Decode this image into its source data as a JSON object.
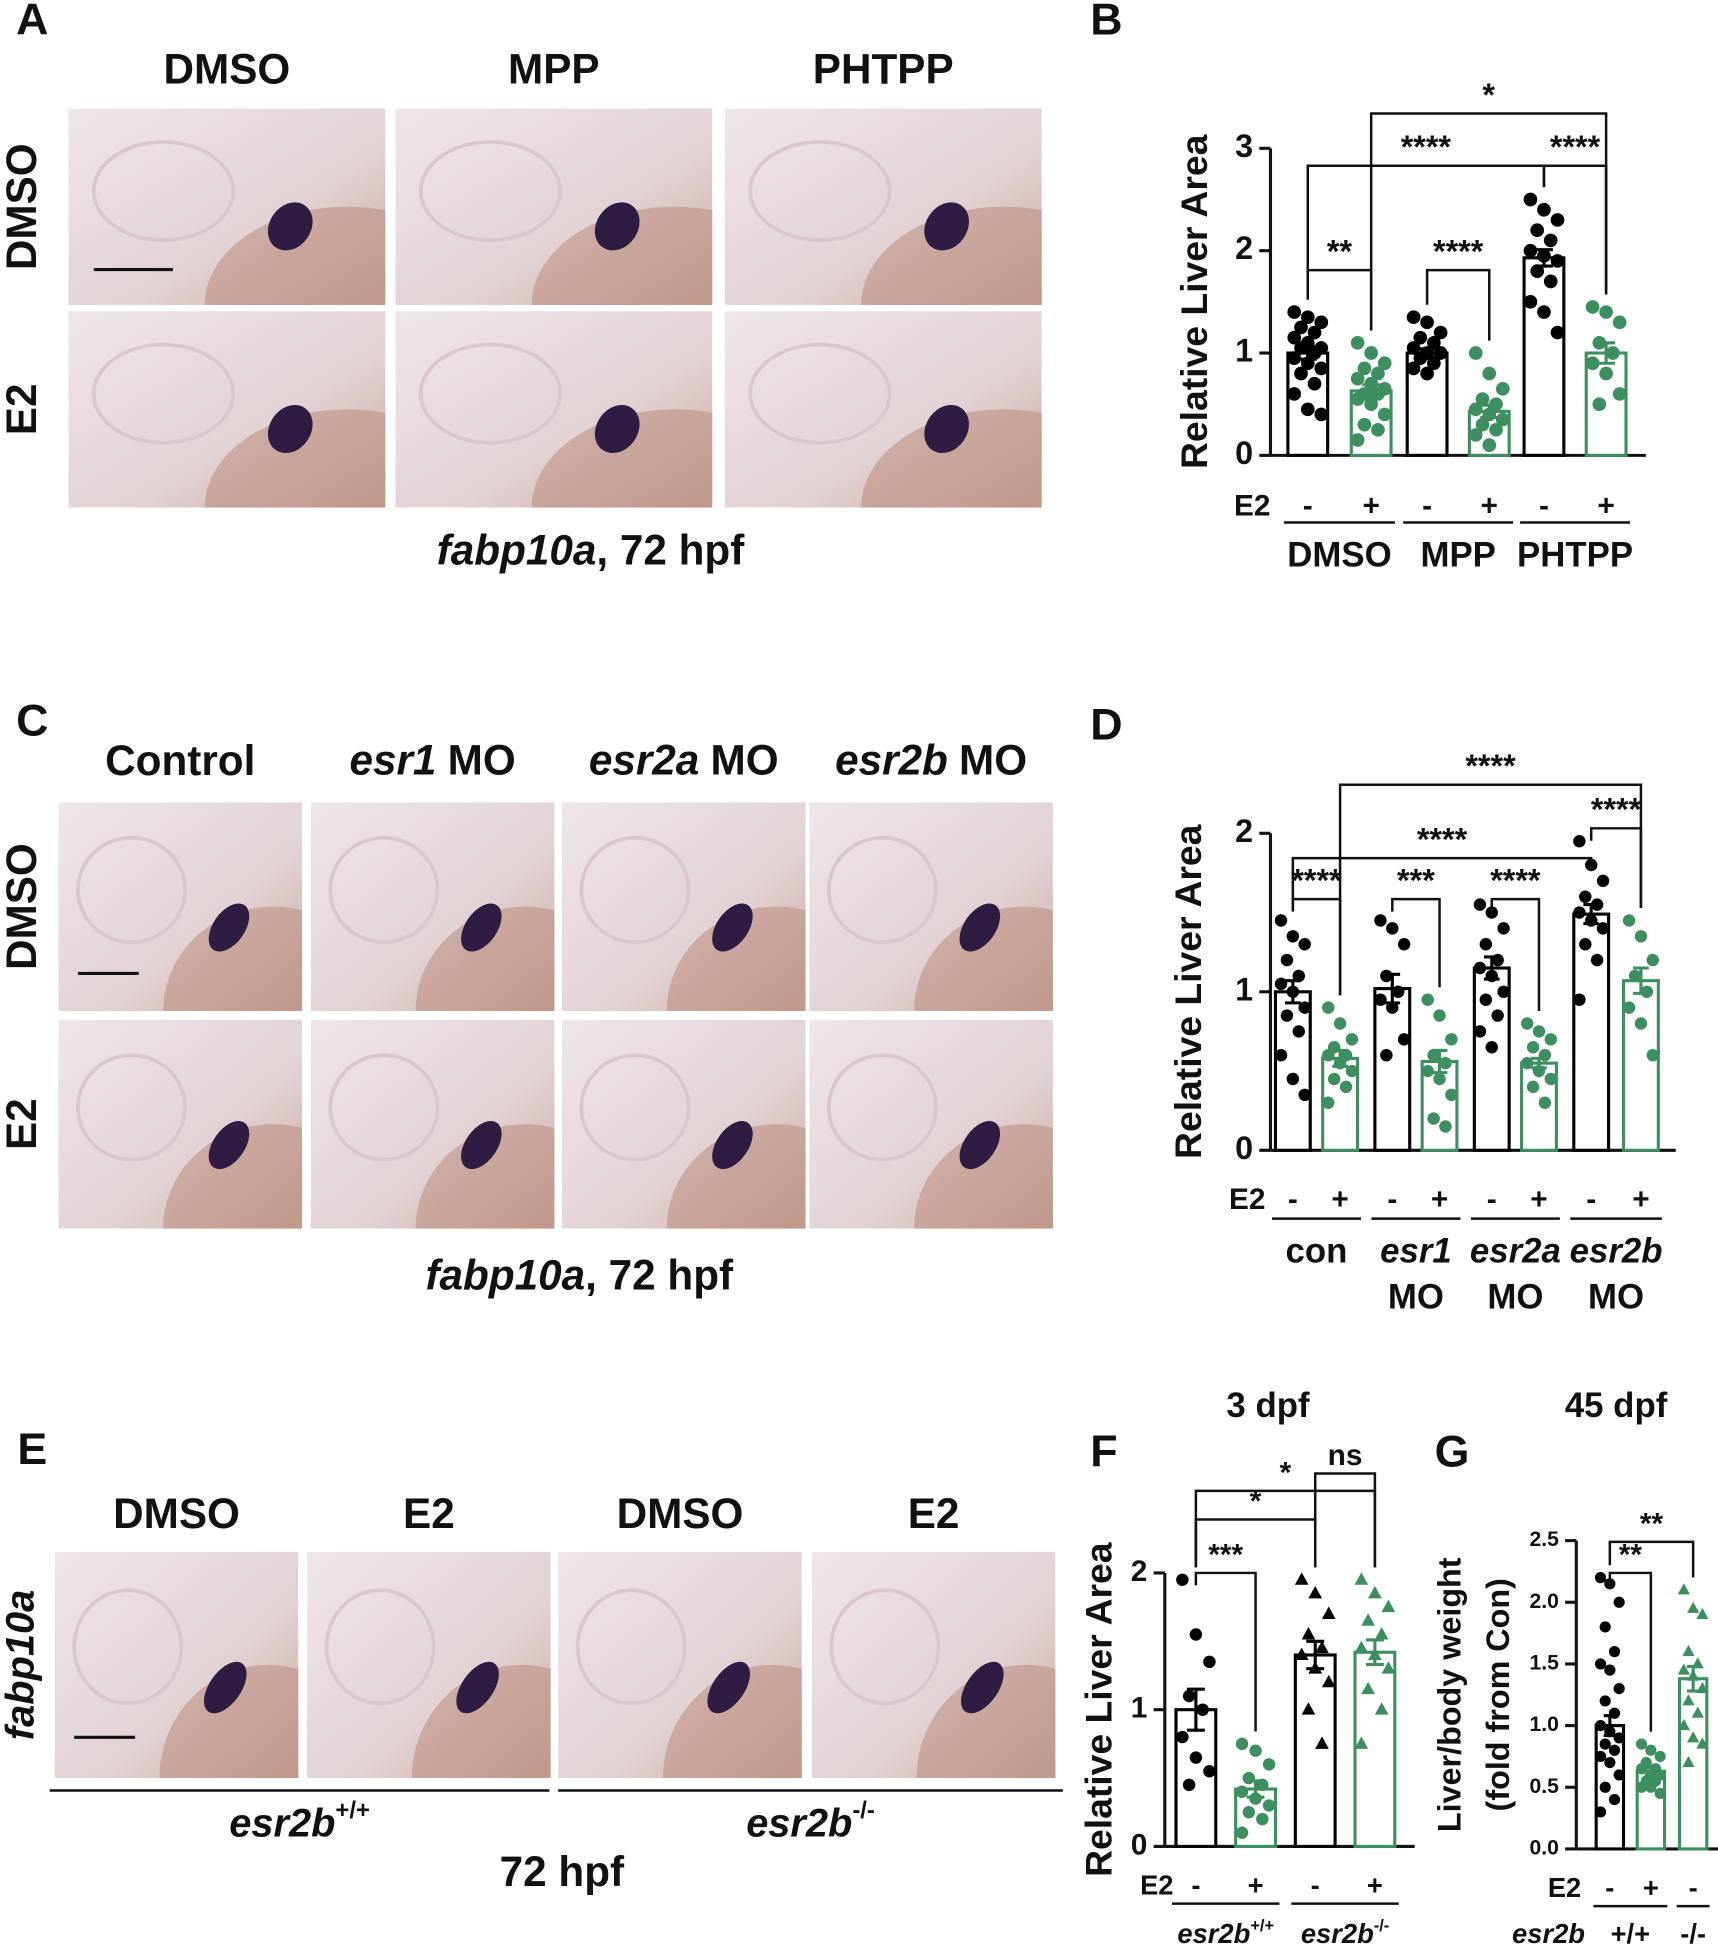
{
  "panels": {
    "A": {
      "letter": "A",
      "columns": [
        "DMSO",
        "MPP",
        "PHTPP"
      ],
      "rows": [
        "DMSO",
        "E2"
      ],
      "caption": {
        "gene": "fabp10a",
        "suffix": ", 72 hpf"
      }
    },
    "C": {
      "letter": "C",
      "columns": [
        "Control",
        {
          "gene": "esr1",
          "suffix": "MO"
        },
        {
          "gene": "esr2a",
          "suffix": "MO"
        },
        {
          "gene": "esr2b",
          "suffix": "MO"
        }
      ],
      "rows": [
        "DMSO",
        "E2"
      ],
      "caption": {
        "gene": "fabp10a",
        "suffix": ", 72 hpf"
      }
    },
    "E": {
      "letter": "E",
      "columns": [
        "DMSO",
        "E2",
        "DMSO",
        "E2"
      ],
      "side_label": {
        "gene": "fabp10a"
      },
      "genotypes": [
        {
          "gene": "esr2b",
          "sup": "+/+"
        },
        {
          "gene": "esr2b",
          "sup": "-/-"
        }
      ],
      "caption": "72 hpf"
    }
  },
  "chart_data": [
    {
      "type": "bar",
      "letter": "B",
      "ylabel": "Relative Liver Area",
      "ylim": [
        0,
        3
      ],
      "yticks": [
        0,
        1,
        2,
        3
      ],
      "row_label": "E2",
      "bars": [
        {
          "treatment": "-",
          "color": "#000000",
          "marker": "circle",
          "value": 1.0,
          "error": 0.06,
          "points": [
            1.4,
            1.35,
            1.3,
            1.25,
            1.2,
            1.15,
            1.1,
            1.05,
            1.05,
            1.0,
            0.95,
            0.9,
            0.85,
            0.8,
            0.7,
            0.6,
            0.45,
            0.4
          ]
        },
        {
          "treatment": "+",
          "color": "#3d8f5f",
          "marker": "circle",
          "value": 0.63,
          "error": 0.06,
          "points": [
            1.1,
            1.0,
            0.9,
            0.85,
            0.8,
            0.75,
            0.7,
            0.65,
            0.6,
            0.6,
            0.55,
            0.5,
            0.4,
            0.3,
            0.25,
            0.15
          ]
        },
        {
          "treatment": "-",
          "color": "#000000",
          "marker": "circle",
          "value": 1.0,
          "error": 0.04,
          "points": [
            1.35,
            1.3,
            1.2,
            1.15,
            1.1,
            1.05,
            1.0,
            1.0,
            0.95,
            0.9,
            0.85,
            0.8
          ]
        },
        {
          "treatment": "+",
          "color": "#3d8f5f",
          "marker": "circle",
          "value": 0.43,
          "error": 0.06,
          "points": [
            1.0,
            0.8,
            0.65,
            0.55,
            0.5,
            0.45,
            0.4,
            0.35,
            0.3,
            0.25,
            0.2,
            0.1
          ]
        },
        {
          "treatment": "-",
          "color": "#000000",
          "marker": "circle",
          "value": 1.93,
          "error": 0.08,
          "points": [
            2.5,
            2.4,
            2.3,
            2.2,
            2.1,
            2.0,
            1.95,
            1.9,
            1.8,
            1.7,
            1.5,
            1.4,
            1.2
          ]
        },
        {
          "treatment": "+",
          "color": "#3d8f5f",
          "marker": "circle",
          "value": 1.0,
          "error": 0.1,
          "points": [
            1.45,
            1.4,
            1.3,
            1.1,
            1.0,
            0.9,
            0.8,
            0.6,
            0.5
          ]
        }
      ],
      "groups": [
        {
          "label": "DMSO",
          "bars": [
            0,
            1
          ]
        },
        {
          "label": "MPP",
          "bars": [
            2,
            3
          ]
        },
        {
          "label": "PHTPP",
          "bars": [
            4,
            5
          ]
        }
      ],
      "significance": [
        {
          "bars": [
            0,
            1
          ],
          "label": "**"
        },
        {
          "bars": [
            2,
            3
          ],
          "label": "****"
        },
        {
          "bars": [
            4,
            5
          ],
          "label": "****"
        },
        {
          "bars": [
            0,
            4
          ],
          "label": "****"
        },
        {
          "bars": [
            1,
            5
          ],
          "label": "*"
        }
      ]
    },
    {
      "type": "bar",
      "letter": "D",
      "ylabel": "Relative Liver Area",
      "ylim": [
        0,
        2
      ],
      "yticks": [
        0,
        1,
        2
      ],
      "row_label": "E2",
      "bars": [
        {
          "treatment": "-",
          "color": "#000000",
          "marker": "circle",
          "value": 1.0,
          "error": 0.07,
          "points": [
            1.45,
            1.35,
            1.3,
            1.2,
            1.1,
            1.05,
            1.0,
            0.9,
            0.85,
            0.75,
            0.6,
            0.45,
            0.35
          ]
        },
        {
          "treatment": "+",
          "color": "#3d8f5f",
          "marker": "circle",
          "value": 0.58,
          "error": 0.05,
          "points": [
            0.9,
            0.8,
            0.7,
            0.65,
            0.6,
            0.6,
            0.55,
            0.5,
            0.45,
            0.4,
            0.3
          ]
        },
        {
          "treatment": "-",
          "color": "#000000",
          "marker": "circle",
          "value": 1.02,
          "error": 0.09,
          "points": [
            1.45,
            1.4,
            1.3,
            1.1,
            1.0,
            0.95,
            0.9,
            0.7,
            0.6
          ]
        },
        {
          "treatment": "+",
          "color": "#3d8f5f",
          "marker": "circle",
          "value": 0.56,
          "error": 0.07,
          "points": [
            0.95,
            0.85,
            0.7,
            0.6,
            0.55,
            0.5,
            0.45,
            0.35,
            0.2,
            0.15
          ]
        },
        {
          "treatment": "-",
          "color": "#000000",
          "marker": "circle",
          "value": 1.15,
          "error": 0.07,
          "points": [
            1.55,
            1.5,
            1.4,
            1.3,
            1.2,
            1.15,
            1.1,
            1.0,
            0.95,
            0.85,
            0.75,
            0.65
          ]
        },
        {
          "treatment": "+",
          "color": "#3d8f5f",
          "marker": "circle",
          "value": 0.55,
          "error": 0.03,
          "points": [
            0.8,
            0.75,
            0.7,
            0.65,
            0.6,
            0.55,
            0.5,
            0.45,
            0.4,
            0.3
          ]
        },
        {
          "treatment": "-",
          "color": "#000000",
          "marker": "circle",
          "value": 1.49,
          "error": 0.06,
          "points": [
            1.95,
            1.8,
            1.7,
            1.6,
            1.55,
            1.5,
            1.45,
            1.4,
            1.3,
            1.2,
            0.95
          ]
        },
        {
          "treatment": "+",
          "color": "#3d8f5f",
          "marker": "circle",
          "value": 1.07,
          "error": 0.08,
          "points": [
            1.45,
            1.35,
            1.2,
            1.1,
            1.0,
            0.9,
            0.8,
            0.6
          ]
        }
      ],
      "groups": [
        {
          "label": "con",
          "bars": [
            0,
            1
          ]
        },
        {
          "label": {
            "gene": "esr1",
            "suffix": "MO"
          },
          "bars": [
            2,
            3
          ]
        },
        {
          "label": {
            "gene": "esr2a",
            "suffix": "MO"
          },
          "bars": [
            4,
            5
          ]
        },
        {
          "label": {
            "gene": "esr2b",
            "suffix": "MO"
          },
          "bars": [
            6,
            7
          ]
        }
      ],
      "significance": [
        {
          "bars": [
            0,
            1
          ],
          "label": "****"
        },
        {
          "bars": [
            2,
            3
          ],
          "label": "***"
        },
        {
          "bars": [
            4,
            5
          ],
          "label": "****"
        },
        {
          "bars": [
            6,
            7
          ],
          "label": "****"
        },
        {
          "bars": [
            0,
            6
          ],
          "label": "****"
        },
        {
          "bars": [
            1,
            7
          ],
          "label": "****"
        }
      ]
    },
    {
      "type": "bar",
      "letter": "F",
      "title": "3 dpf",
      "ylabel": "Relative Liver Area",
      "ylim": [
        0,
        2
      ],
      "yticks": [
        0,
        1,
        2
      ],
      "row_label": "E2",
      "bars": [
        {
          "treatment": "-",
          "color": "#000000",
          "marker": "circle",
          "value": 1.0,
          "error": 0.15,
          "points": [
            1.95,
            1.55,
            1.35,
            1.1,
            1.0,
            0.8,
            0.65,
            0.55,
            0.45
          ]
        },
        {
          "treatment": "+",
          "color": "#3d8f5f",
          "marker": "circle",
          "value": 0.42,
          "error": 0.06,
          "points": [
            0.75,
            0.7,
            0.6,
            0.5,
            0.45,
            0.4,
            0.35,
            0.3,
            0.25,
            0.2,
            0.1
          ]
        },
        {
          "treatment": "-",
          "color": "#000000",
          "marker": "triangle",
          "value": 1.4,
          "error": 0.1,
          "points": [
            1.95,
            1.85,
            1.7,
            1.55,
            1.45,
            1.4,
            1.3,
            1.2,
            1.0,
            0.75
          ]
        },
        {
          "treatment": "+",
          "color": "#3d8f5f",
          "marker": "triangle",
          "value": 1.42,
          "error": 0.09,
          "points": [
            1.95,
            1.85,
            1.75,
            1.65,
            1.55,
            1.45,
            1.4,
            1.3,
            1.15,
            1.0,
            0.75
          ]
        }
      ],
      "groups": [
        {
          "label": {
            "gene": "esr2b",
            "sup": "+/+"
          },
          "bars": [
            0,
            1
          ]
        },
        {
          "label": {
            "gene": "esr2b",
            "sup": "-/-"
          },
          "bars": [
            2,
            3
          ]
        }
      ],
      "significance": [
        {
          "bars": [
            0,
            1
          ],
          "label": "***"
        },
        {
          "bars": [
            0,
            2
          ],
          "label": "*"
        },
        {
          "bars": [
            0,
            3
          ],
          "label": "*"
        },
        {
          "bars": [
            2,
            3
          ],
          "label": "ns"
        }
      ]
    },
    {
      "type": "bar",
      "letter": "G",
      "title": "45 dpf",
      "ylabel": [
        "Liver/body weight",
        "(fold from Con)"
      ],
      "ylim": [
        0,
        2.5
      ],
      "yticks": [
        {
          "value": 0,
          "label": "0.0"
        },
        0.5,
        {
          "value": 1,
          "label": "1.0"
        },
        1.5,
        {
          "value": 2,
          "label": "2.0"
        },
        2.5
      ],
      "row_label": "E2",
      "group_row_label": {
        "gene": "esr2b"
      },
      "bars": [
        {
          "treatment": "-",
          "color": "#000000",
          "marker": "circle",
          "value": 1.0,
          "error": 0.08,
          "points": [
            2.2,
            2.15,
            2.0,
            1.8,
            1.6,
            1.5,
            1.45,
            1.3,
            1.2,
            1.1,
            1.0,
            0.95,
            0.9,
            0.85,
            0.8,
            0.75,
            0.7,
            0.6,
            0.5,
            0.4,
            0.3
          ]
        },
        {
          "treatment": "+",
          "color": "#3d8f5f",
          "marker": "circle",
          "value": 0.63,
          "error": 0.03,
          "points": [
            0.85,
            0.8,
            0.75,
            0.7,
            0.65,
            0.65,
            0.6,
            0.6,
            0.55,
            0.55,
            0.5,
            0.5,
            0.45
          ]
        },
        {
          "treatment": "-",
          "color": "#3d8f5f",
          "marker": "triangle",
          "value": 1.38,
          "error": 0.1,
          "points": [
            2.1,
            1.95,
            1.9,
            1.6,
            1.5,
            1.45,
            1.4,
            1.3,
            1.2,
            1.1,
            1.0,
            0.9,
            0.85,
            0.7
          ]
        }
      ],
      "groups": [
        {
          "label": "+/+",
          "bars": [
            0,
            1
          ]
        },
        {
          "label": "-/-",
          "bars": [
            2
          ]
        }
      ],
      "significance": [
        {
          "bars": [
            0,
            1
          ],
          "label": "**"
        },
        {
          "bars": [
            0,
            2
          ],
          "label": "**"
        }
      ]
    }
  ]
}
